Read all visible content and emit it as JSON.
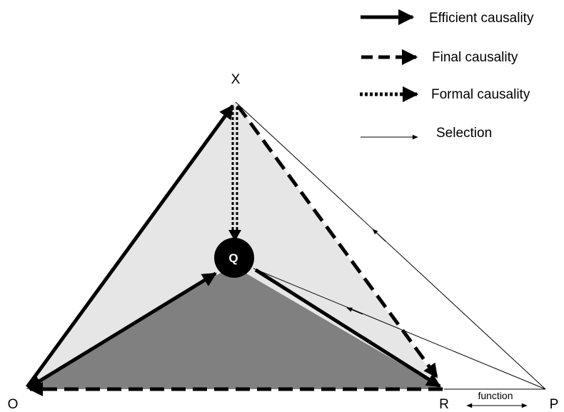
{
  "nodes": {
    "x": "X",
    "q": "Q",
    "o": "O",
    "r": "R",
    "p": "P"
  },
  "function_label": "function",
  "legend": {
    "efficient": "Efficient causality",
    "final": "Final causality",
    "formal": "Formal causality",
    "selection": "Selection"
  },
  "colors": {
    "outer_triangle_fill": "#e6e6e6",
    "inner_triangle_fill": "#808080",
    "stroke": "#000000",
    "q_circle": "#000000"
  }
}
